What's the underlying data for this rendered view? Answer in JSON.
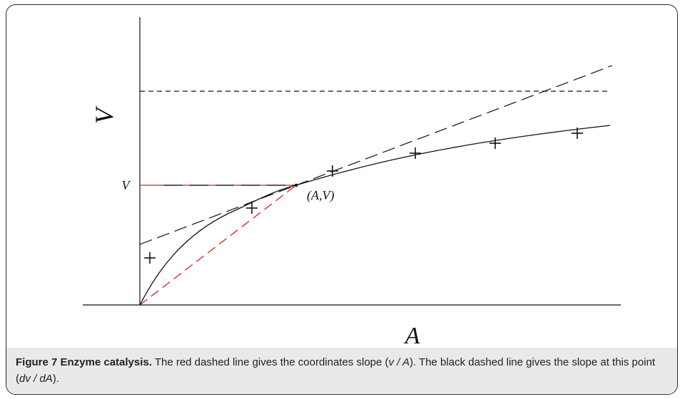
{
  "figure": {
    "axis_y_label": "V",
    "axis_x_label": "A",
    "point_v_label": "V",
    "point_label": "(A,V)",
    "data_point_count": 6
  },
  "caption": {
    "label": "Figure 7 Enzyme catalysis.",
    "text_before_1": " The red dashed line gives the coordinates slope (",
    "math_1": "v / A",
    "text_after_1": "). The black dashed line gives the slope at this point (",
    "math_2": "dv / dA",
    "text_after_2": ")."
  },
  "colors": {
    "red_line": "#d42020",
    "black_line": "#111111",
    "caption_bg": "#e9e9e9"
  }
}
